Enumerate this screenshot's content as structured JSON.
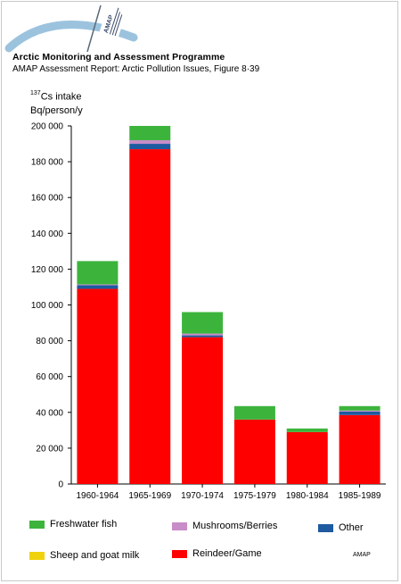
{
  "header": {
    "org_title": "Arctic Monitoring and Assessment Programme",
    "report_title": "AMAP Assessment Report: Arctic Pollution Issues, Figure 8·39",
    "logo_text": "AMAP"
  },
  "colors": {
    "freshwater_fish": "#3cb43c",
    "mushrooms_berries": "#c88cc8",
    "other": "#1e5aa0",
    "sheep_goat_milk": "#f0d20a",
    "reindeer_game": "#ff0000",
    "logo_arc": "#9cc3de"
  },
  "chart_data": {
    "type": "bar",
    "stacked": true,
    "ylabel_sup": "137",
    "ylabel_line1": "Cs intake",
    "ylabel_line2": "Bq/person/y",
    "ylim": [
      0,
      200000
    ],
    "yticks": [
      0,
      20000,
      40000,
      60000,
      80000,
      100000,
      120000,
      140000,
      160000,
      180000,
      200000
    ],
    "ytick_labels": [
      "0",
      "20 000",
      "40 000",
      "60 000",
      "80 000",
      "100 000",
      "120 000",
      "140 000",
      "160 000",
      "180 000",
      "200 000"
    ],
    "categories": [
      "1960-1964",
      "1965-1969",
      "1970-1974",
      "1975-1979",
      "1980-1984",
      "1985-1989"
    ],
    "series": [
      {
        "name": "Reindeer/Game",
        "color_key": "reindeer_game",
        "values": [
          109000,
          187000,
          82000,
          36000,
          29000,
          38500
        ]
      },
      {
        "name": "Sheep and goat milk",
        "color_key": "sheep_goat_milk",
        "values": [
          0,
          0,
          0,
          0,
          0,
          0
        ]
      },
      {
        "name": "Other",
        "color_key": "other",
        "values": [
          2000,
          3000,
          1000,
          0,
          0,
          2000
        ]
      },
      {
        "name": "Mushrooms/Berries",
        "color_key": "mushrooms_berries",
        "values": [
          500,
          2000,
          1000,
          0,
          0,
          500
        ]
      },
      {
        "name": "Freshwater fish",
        "color_key": "freshwater_fish",
        "values": [
          13000,
          8000,
          12000,
          7500,
          2000,
          2500
        ]
      }
    ],
    "grid": false,
    "legend_position": "bottom"
  },
  "legend": {
    "freshwater_fish": "Freshwater fish",
    "mushrooms_berries": "Mushrooms/Berries",
    "other": "Other",
    "sheep_goat_milk": "Sheep and goat milk",
    "reindeer_game": "Reindeer/Game"
  },
  "footer": {
    "credit": "AMAP"
  }
}
